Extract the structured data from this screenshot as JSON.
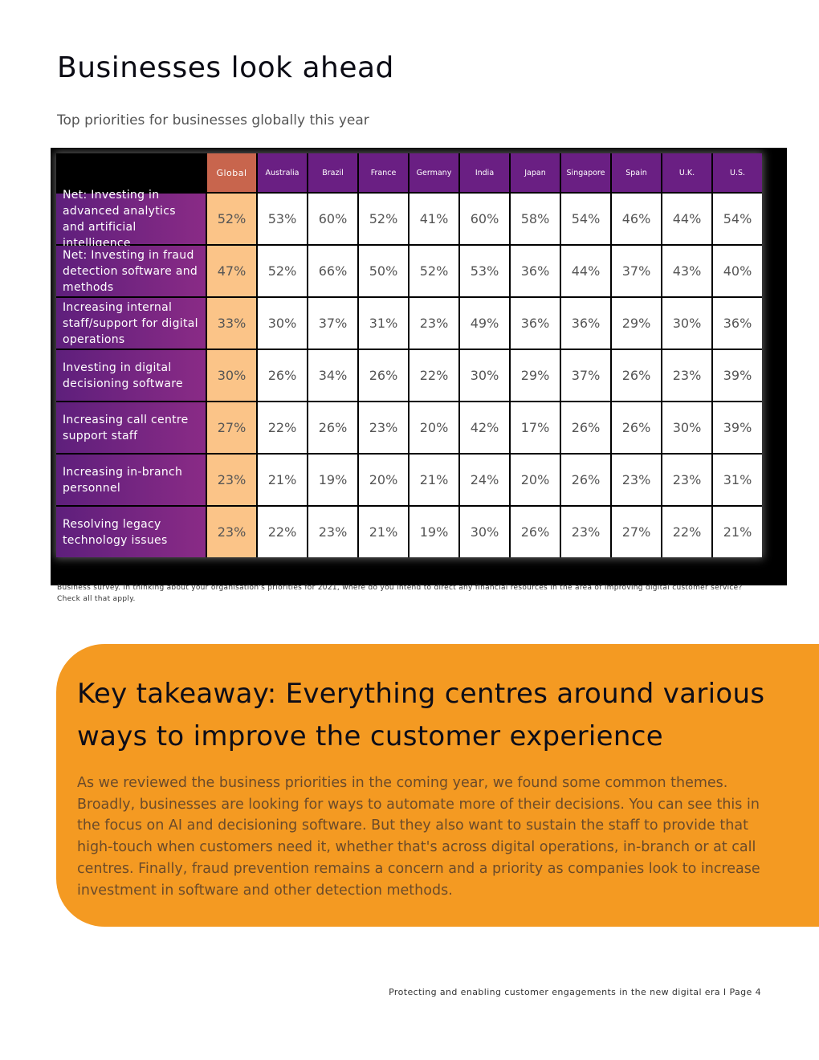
{
  "page": {
    "title": "Businesses look ahead",
    "subtitle": "Top priorities for businesses globally this year",
    "note": "Business survey. In thinking about your organisation's priorities for 2021, where do you intend to direct any financial resources in the area of improving digital customer service? Check all that apply.",
    "footer": "Protecting and enabling customer engagements in the new digital era I Page 4"
  },
  "table": {
    "columns": [
      "Global",
      "Australia",
      "Brazil",
      "France",
      "Germany",
      "India",
      "Japan",
      "Singapore",
      "Spain",
      "U.K.",
      "U.S."
    ],
    "rows": [
      {
        "label": "Net: Investing in advanced analytics and artificial intelligence",
        "values": [
          "52%",
          "53%",
          "60%",
          "52%",
          "41%",
          "60%",
          "58%",
          "54%",
          "46%",
          "44%",
          "54%"
        ]
      },
      {
        "label": "Net: Investing in fraud detection software and methods",
        "values": [
          "47%",
          "52%",
          "66%",
          "50%",
          "52%",
          "53%",
          "36%",
          "44%",
          "37%",
          "43%",
          "40%"
        ]
      },
      {
        "label": "Increasing internal staff/support for digital operations",
        "values": [
          "33%",
          "30%",
          "37%",
          "31%",
          "23%",
          "49%",
          "36%",
          "36%",
          "29%",
          "30%",
          "36%"
        ]
      },
      {
        "label": "Investing in digital decisioning software",
        "values": [
          "30%",
          "26%",
          "34%",
          "26%",
          "22%",
          "30%",
          "29%",
          "37%",
          "26%",
          "23%",
          "39%"
        ]
      },
      {
        "label": "Increasing call centre support staff",
        "values": [
          "27%",
          "22%",
          "26%",
          "23%",
          "20%",
          "42%",
          "17%",
          "26%",
          "26%",
          "30%",
          "39%"
        ]
      },
      {
        "label": "Increasing in-branch personnel",
        "values": [
          "23%",
          "21%",
          "19%",
          "20%",
          "21%",
          "24%",
          "20%",
          "26%",
          "23%",
          "23%",
          "31%"
        ]
      },
      {
        "label": "Resolving legacy technology issues",
        "values": [
          "23%",
          "22%",
          "23%",
          "21%",
          "19%",
          "30%",
          "26%",
          "23%",
          "27%",
          "22%",
          "21%"
        ]
      }
    ]
  },
  "takeaway": {
    "title": "Key takeaway: Everything centres around various ways to improve the customer experience",
    "body": "As we reviewed the business priorities in the coming year, we found some common themes. Broadly, businesses are looking for ways to automate more of their decisions. You can see this in the focus on AI and decisioning software. But they also want to sustain the staff to provide that high-touch when customers need it, whether that's across digital operations, in-branch or at call centres. Finally, fraud prevention remains a concern and a priority as companies look to increase investment in software and other detection methods."
  },
  "colors": {
    "header_purple": "#6a1f83",
    "header_global": "#c8654d",
    "global_cell": "#fbc488",
    "takeaway_orange": "#f49a22"
  }
}
